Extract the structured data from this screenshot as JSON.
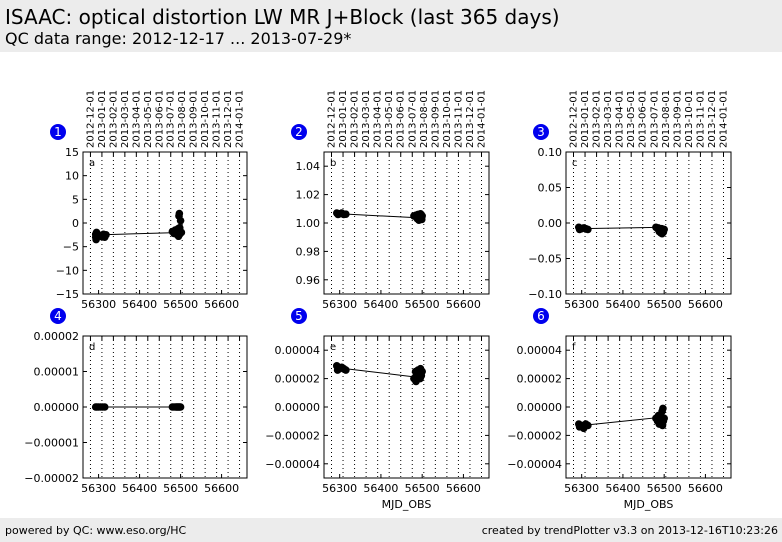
{
  "header": {
    "title": "ISAAC: optical distortion LW MR J+Block (last 365 days)",
    "subtitle": "QC data range: 2012-12-17 ... 2013-07-29*"
  },
  "footer": {
    "left": "powered by QC: www.eso.org/HC",
    "right": "created by trendPlotter v3.3 on 2013-12-16T10:23:26"
  },
  "colors": {
    "badge": "#0000ee",
    "marker": "#000000",
    "line": "#000000",
    "grid": "#000000"
  },
  "top_date_ticks": [
    "2012-12-01",
    "2013-01-01",
    "2013-02-01",
    "2013-03-01",
    "2013-04-01",
    "2013-05-01",
    "2013-06-01",
    "2013-07-01",
    "2013-08-01",
    "2013-09-01",
    "2013-10-01",
    "2013-11-01",
    "2013-12-01",
    "2014-01-01"
  ],
  "chart_data": [
    {
      "type": "scatter",
      "badge": "1",
      "letter": "a",
      "xlim": [
        56262,
        56662
      ],
      "ylim": [
        -15,
        15
      ],
      "xticks": [
        "56300",
        "56400",
        "56500",
        "56600"
      ],
      "yticks": [
        "15",
        "10",
        "5",
        "0",
        "−5",
        "−10",
        "−15"
      ],
      "ytick_values": [
        15,
        10,
        5,
        0,
        -5,
        -10,
        -15
      ],
      "xlabel": "",
      "grid": true,
      "top_axis": true,
      "line": [
        [
          56300,
          -2.5
        ],
        [
          56500,
          -2.0
        ]
      ],
      "x": [
        56293,
        56293,
        56294,
        56295,
        56296,
        56302,
        56305,
        56308,
        56312,
        56315,
        56318,
        56480,
        56484,
        56487,
        56490,
        56492,
        56494,
        56495,
        56496,
        56497,
        56498,
        56500,
        56502,
        56490,
        56498
      ],
      "y": [
        -2.4,
        -3.0,
        -3.5,
        -2.0,
        -2.8,
        -2.6,
        -2.7,
        -2.9,
        -2.4,
        -3.0,
        -2.5,
        -1.8,
        -2.2,
        -1.5,
        -2.0,
        -2.5,
        -1.2,
        -2.8,
        1.5,
        2.0,
        -1.5,
        0.5,
        -2.0,
        -2.3,
        -1.0
      ]
    },
    {
      "type": "scatter",
      "badge": "2",
      "letter": "b",
      "xlim": [
        56262,
        56662
      ],
      "ylim": [
        0.95,
        1.05
      ],
      "xticks": [
        "56300",
        "56400",
        "56500",
        "56600"
      ],
      "yticks": [
        "1.04",
        "1.02",
        "1.00",
        "0.98",
        "0.96"
      ],
      "ytick_values": [
        1.04,
        1.02,
        1.0,
        0.98,
        0.96
      ],
      "xlabel": "",
      "grid": true,
      "top_axis": true,
      "line": [
        [
          56300,
          1.0065
        ],
        [
          56500,
          1.0035
        ]
      ],
      "x": [
        56293,
        56296,
        56300,
        56305,
        56310,
        56315,
        56480,
        56485,
        56488,
        56490,
        56492,
        56494,
        56496,
        56498,
        56500,
        56486,
        56495,
        56499
      ],
      "y": [
        1.007,
        1.006,
        1.0065,
        1.007,
        1.006,
        1.0062,
        1.005,
        1.0055,
        1.003,
        1.006,
        1.002,
        1.0045,
        1.0065,
        1.003,
        1.005,
        1.004,
        1.0035,
        1.0025
      ]
    },
    {
      "type": "scatter",
      "badge": "3",
      "letter": "c",
      "xlim": [
        56262,
        56662
      ],
      "ylim": [
        -0.1,
        0.1
      ],
      "xticks": [
        "56300",
        "56400",
        "56500",
        "56600"
      ],
      "yticks": [
        "0.10",
        "0.05",
        "0.00",
        "−0.05",
        "−0.10"
      ],
      "ytick_values": [
        0.1,
        0.05,
        0.0,
        -0.05,
        -0.1
      ],
      "xlabel": "",
      "grid": true,
      "top_axis": true,
      "line": [
        [
          56300,
          -0.008
        ],
        [
          56500,
          -0.006
        ]
      ],
      "x": [
        56293,
        56295,
        56300,
        56305,
        56310,
        56315,
        56480,
        56484,
        56488,
        56490,
        56492,
        56494,
        56496,
        56498,
        56500,
        56486,
        56495
      ],
      "y": [
        -0.006,
        -0.009,
        -0.008,
        -0.007,
        -0.008,
        -0.009,
        -0.006,
        -0.008,
        -0.012,
        -0.01,
        -0.014,
        -0.008,
        -0.011,
        -0.013,
        -0.009,
        -0.007,
        -0.015
      ]
    },
    {
      "type": "scatter",
      "badge": "4",
      "letter": "d",
      "xlim": [
        56262,
        56662
      ],
      "ylim": [
        -2e-05,
        2e-05
      ],
      "xticks": [
        "56300",
        "56400",
        "56500",
        "56600"
      ],
      "yticks": [
        "0.00002",
        "0.00001",
        "0.00000",
        "−0.00001",
        "−0.00002"
      ],
      "ytick_values": [
        2e-05,
        1e-05,
        0,
        -1e-05,
        -2e-05
      ],
      "xlabel": "",
      "grid": true,
      "top_axis": false,
      "line": [
        [
          56300,
          0.0
        ],
        [
          56500,
          0.0
        ]
      ],
      "x": [
        56293,
        56296,
        56300,
        56305,
        56310,
        56315,
        56480,
        56484,
        56488,
        56490,
        56492,
        56494,
        56496,
        56498,
        56500
      ],
      "y": [
        0,
        0,
        0,
        0,
        0,
        0,
        0,
        0,
        0,
        0,
        0,
        0,
        0,
        0,
        0
      ]
    },
    {
      "type": "scatter",
      "badge": "5",
      "letter": "e",
      "xlim": [
        56262,
        56662
      ],
      "ylim": [
        -5e-05,
        5e-05
      ],
      "xticks": [
        "56300",
        "56400",
        "56500",
        "56600"
      ],
      "yticks": [
        "0.00004",
        "0.00002",
        "0.00000",
        "−0.00002",
        "−0.00004"
      ],
      "ytick_values": [
        4e-05,
        2e-05,
        0,
        -2e-05,
        -4e-05
      ],
      "xlabel": "MJD_OBS",
      "grid": true,
      "top_axis": false,
      "line": [
        [
          56300,
          2.75e-05
        ],
        [
          56500,
          2.05e-05
        ]
      ],
      "x": [
        56293,
        56295,
        56300,
        56305,
        56310,
        56315,
        56480,
        56484,
        56486,
        56488,
        56490,
        56492,
        56494,
        56496,
        56498,
        56500,
        56485,
        56495
      ],
      "y": [
        2.9e-05,
        2.6e-05,
        2.7e-05,
        2.8e-05,
        2.7e-05,
        2.6e-05,
        2e-05,
        2.5e-05,
        2.3e-05,
        2.2e-05,
        2.6e-05,
        2.1e-05,
        2.4e-05,
        2.7e-05,
        2.2e-05,
        2.5e-05,
        1.8e-05,
        2e-05
      ]
    },
    {
      "type": "scatter",
      "badge": "6",
      "letter": "f",
      "xlim": [
        56262,
        56662
      ],
      "ylim": [
        -5e-05,
        5e-05
      ],
      "xticks": [
        "56300",
        "56400",
        "56500",
        "56600"
      ],
      "yticks": [
        "0.00004",
        "0.00002",
        "0.00000",
        "−0.00002",
        "−0.00004"
      ],
      "ytick_values": [
        4e-05,
        2e-05,
        0,
        -2e-05,
        -4e-05
      ],
      "xlabel": "MJD_OBS",
      "grid": true,
      "top_axis": false,
      "line": [
        [
          56300,
          -1.3e-05
        ],
        [
          56500,
          -7e-06
        ]
      ],
      "x": [
        56293,
        56295,
        56300,
        56305,
        56310,
        56315,
        56480,
        56484,
        56486,
        56488,
        56490,
        56492,
        56494,
        56496,
        56498,
        56500,
        56495,
        56497
      ],
      "y": [
        -1.2e-05,
        -1.4e-05,
        -1.3e-05,
        -1.5e-05,
        -1.2e-05,
        -1.3e-05,
        -8e-06,
        -1e-05,
        -6e-06,
        -1.2e-05,
        -9e-06,
        -1.1e-05,
        -7e-06,
        -1.3e-05,
        -1e-05,
        -8e-06,
        -3e-06,
        -1e-06
      ]
    }
  ]
}
